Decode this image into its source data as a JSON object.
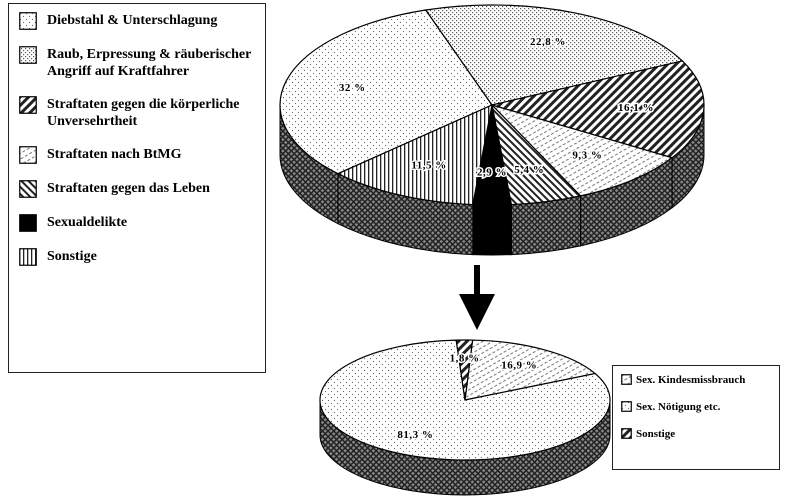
{
  "chart_data": [
    {
      "type": "pie3d",
      "categories": [
        "Diebstahl & Unterschlagung",
        "Raub, Erpressung & räuberischer Angriff auf Kraftfahrer",
        "Straftaten gegen die körperliche Unversehrtheit",
        "Straftaten nach BtMG",
        "Straftaten gegen das Leben",
        "Sexualdelikte",
        "Sonstige"
      ],
      "values": [
        32,
        22.8,
        16.1,
        9.3,
        5.4,
        2.9,
        11.5
      ],
      "value_labels": [
        "32 %",
        "22,8 %",
        "16,1 %",
        "9,3 %",
        "5,4 %",
        "2,9 %",
        "11,5 %"
      ]
    },
    {
      "type": "pie3d",
      "categories": [
        "Sex. Kindesmissbrauch",
        "Sex. Nötigung etc.",
        "Sonstige"
      ],
      "values": [
        16.9,
        81.3,
        1.8
      ],
      "value_labels": [
        "16,9 %",
        "81,3 %",
        "1,8 %"
      ]
    }
  ]
}
